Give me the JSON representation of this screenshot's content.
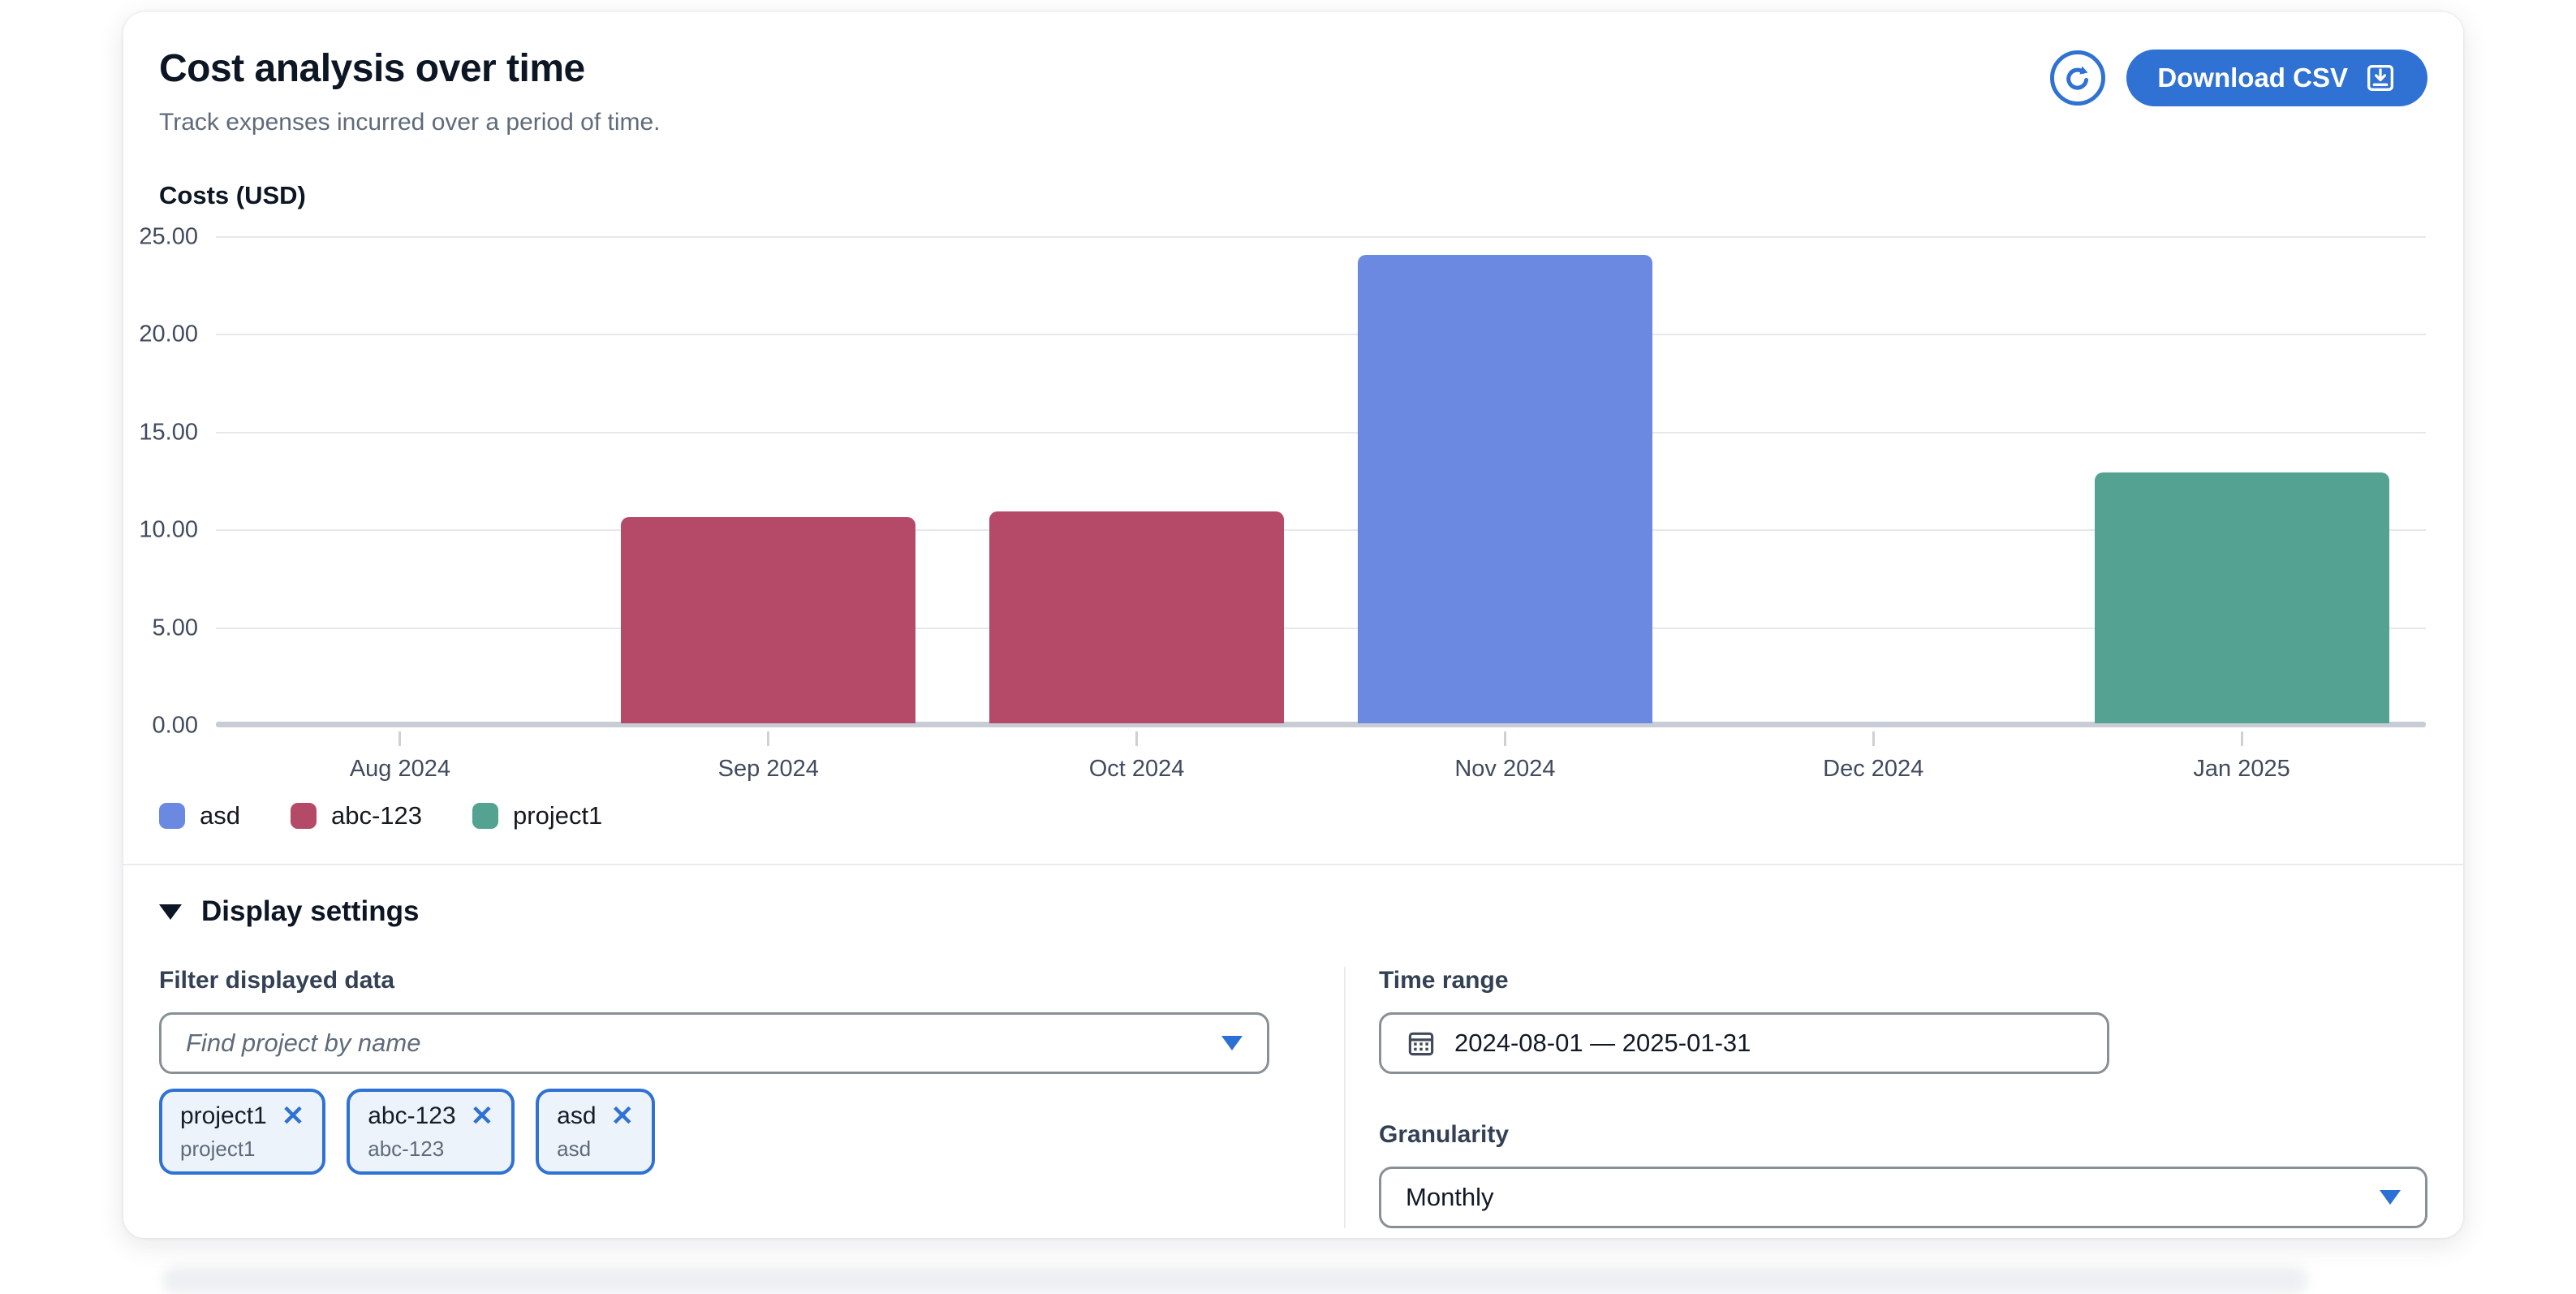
{
  "header": {
    "title": "Cost analysis over time",
    "subtitle": "Track expenses incurred over a period of time.",
    "download_label": "Download CSV"
  },
  "chart_data": {
    "type": "bar",
    "title": "Costs (USD)",
    "categories": [
      "Aug 2024",
      "Sep 2024",
      "Oct 2024",
      "Nov 2024",
      "Dec 2024",
      "Jan 2025"
    ],
    "series": [
      {
        "name": "asd",
        "color": "#6b89e0",
        "values": [
          0,
          0,
          0,
          24.1,
          0,
          0
        ]
      },
      {
        "name": "abc-123",
        "color": "#b44a68",
        "values": [
          0,
          10.6,
          10.9,
          0,
          0,
          0
        ]
      },
      {
        "name": "project1",
        "color": "#54a392",
        "values": [
          0,
          0,
          0,
          0,
          0,
          12.9
        ]
      }
    ],
    "ylim": [
      0,
      25
    ],
    "ytick_labels": [
      "25.00",
      "20.00",
      "15.00",
      "10.00",
      "5.00",
      "0.00"
    ],
    "grid": true,
    "legend_position": "bottom"
  },
  "settings": {
    "title": "Display settings",
    "filter": {
      "label": "Filter displayed data",
      "placeholder": "Find project by name",
      "chips": [
        {
          "name": "project1",
          "sub": "project1"
        },
        {
          "name": "abc-123",
          "sub": "abc-123"
        },
        {
          "name": "asd",
          "sub": "asd"
        }
      ]
    },
    "time_range": {
      "label": "Time range",
      "value": "2024-08-01 — 2025-01-31"
    },
    "granularity": {
      "label": "Granularity",
      "value": "Monthly"
    }
  },
  "colors": {
    "accent_blue": "#2f72d3",
    "bar_blue": "#6b89e0",
    "bar_red": "#b44a68",
    "bar_teal": "#54a392"
  }
}
